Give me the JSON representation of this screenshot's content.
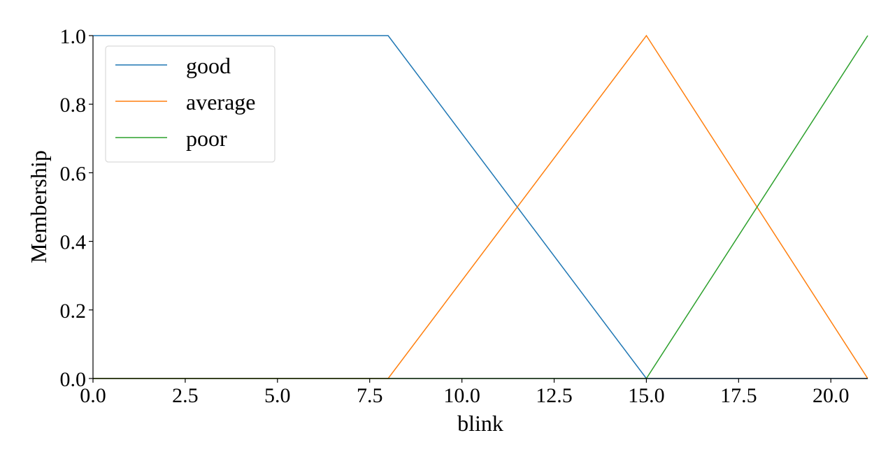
{
  "chart_data": {
    "type": "line",
    "xlabel": "blink",
    "ylabel": "Membership",
    "xlim": [
      0,
      21
    ],
    "ylim": [
      0,
      1
    ],
    "x_ticks": [
      "0.0",
      "2.5",
      "5.0",
      "7.5",
      "10.0",
      "12.5",
      "15.0",
      "17.5",
      "20.0"
    ],
    "y_ticks": [
      "0.0",
      "0.2",
      "0.4",
      "0.6",
      "0.8",
      "1.0"
    ],
    "grid": false,
    "legend_position": "top-left",
    "series": [
      {
        "name": "good",
        "color": "#1f77b4",
        "x": [
          0,
          8,
          15,
          21
        ],
        "y": [
          1,
          1,
          0,
          0
        ]
      },
      {
        "name": "average",
        "color": "#ff7f0e",
        "x": [
          0,
          8,
          15,
          21
        ],
        "y": [
          0,
          0,
          1,
          0
        ]
      },
      {
        "name": "poor",
        "color": "#2ca02c",
        "x": [
          0,
          15,
          21
        ],
        "y": [
          0,
          0,
          1
        ]
      }
    ]
  }
}
